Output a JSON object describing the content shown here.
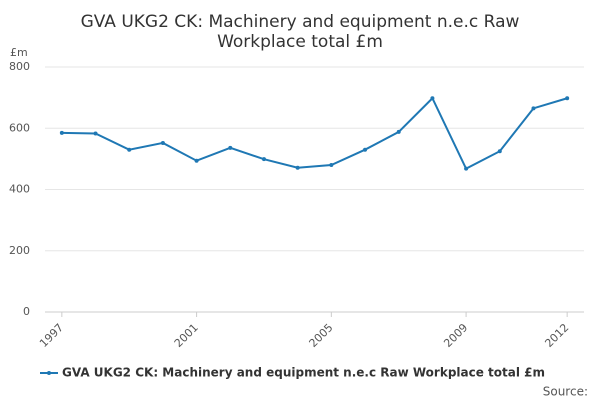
{
  "chart_data": {
    "type": "line",
    "title": "GVA UKG2 CK: Machinery and equipment n.e.c Raw",
    "title_line2": "Workplace total £m",
    "y_axis_label": "£m",
    "source": "Source:",
    "x": [
      1997,
      1998,
      1999,
      2000,
      2001,
      2002,
      2003,
      2004,
      2005,
      2006,
      2007,
      2008,
      2009,
      2010,
      2011,
      2012
    ],
    "series": [
      {
        "name": "GVA UKG2 CK: Machinery and equipment n.e.c Raw Workplace total £m",
        "color": "#1f78b4",
        "values": [
          585,
          583,
          530,
          552,
          494,
          536,
          499,
          471,
          480,
          530,
          588,
          698,
          468,
          525,
          665,
          698
        ]
      }
    ],
    "xlim": [
      1996.5,
      2012.5
    ],
    "xticks": [
      1997,
      2001,
      2005,
      2009,
      2012
    ],
    "ylim": [
      0,
      800
    ],
    "yticks": [
      0,
      200,
      400,
      600,
      800
    ],
    "grid": true
  }
}
